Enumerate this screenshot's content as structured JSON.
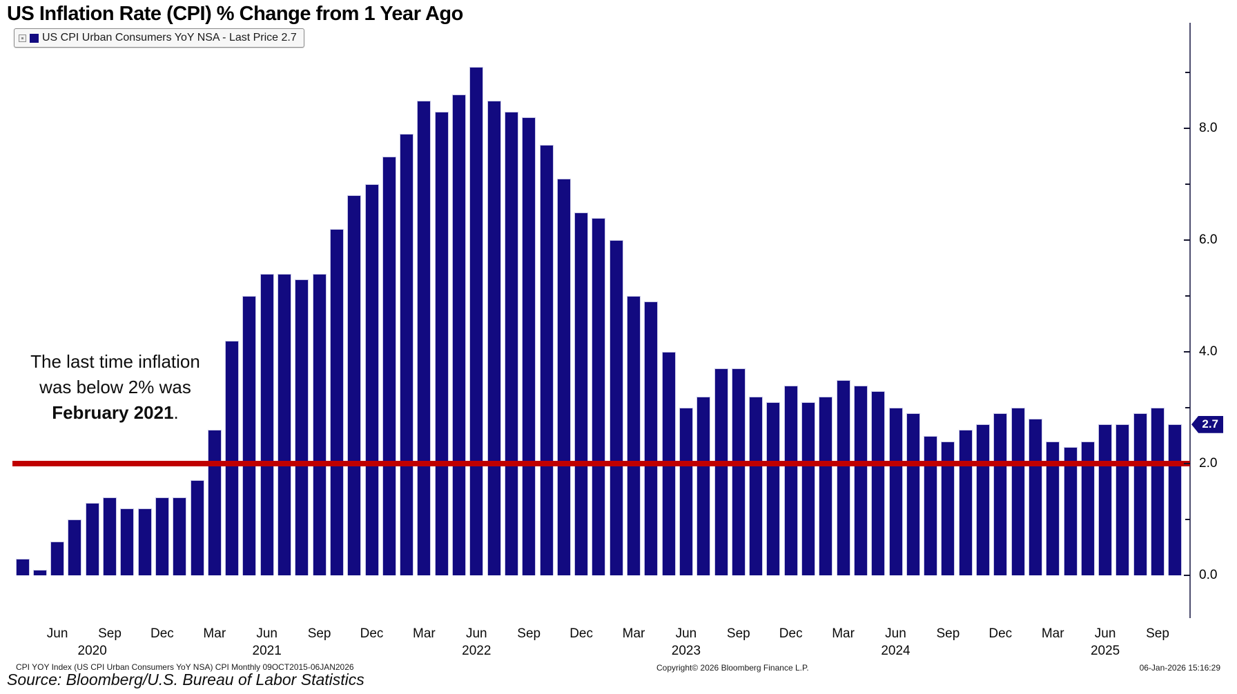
{
  "title": "US Inflation Rate (CPI) % Change from 1 Year Ago",
  "legend": {
    "label": "US CPI Urban Consumers YoY NSA - Last Price 2.7",
    "swatch_color": "#120a80"
  },
  "annotation": {
    "line1": "The last time inflation",
    "line2": "was below 2% was",
    "line3_bold": "February 2021",
    "line3_suffix": "."
  },
  "chart_data": {
    "type": "bar",
    "title": "US Inflation Rate (CPI) % Change from 1 Year Ago",
    "series_name": "US CPI Urban Consumers YoY NSA",
    "last_price": "2.7",
    "bar_color": "#120a80",
    "bar_edge_color": "#c9c9e6",
    "ref_line": {
      "value": 2.0,
      "color": "#c00000"
    },
    "ylim": [
      0,
      9.35
    ],
    "y_axis_side": "right",
    "grid": false,
    "months": [
      "Apr 2020",
      "May 2020",
      "Jun 2020",
      "Jul 2020",
      "Aug 2020",
      "Sep 2020",
      "Oct 2020",
      "Nov 2020",
      "Dec 2020",
      "Jan 2021",
      "Feb 2021",
      "Mar 2021",
      "Apr 2021",
      "May 2021",
      "Jun 2021",
      "Jul 2021",
      "Aug 2021",
      "Sep 2021",
      "Oct 2021",
      "Nov 2021",
      "Dec 2021",
      "Jan 2022",
      "Feb 2022",
      "Mar 2022",
      "Apr 2022",
      "May 2022",
      "Jun 2022",
      "Jul 2022",
      "Aug 2022",
      "Sep 2022",
      "Oct 2022",
      "Nov 2022",
      "Dec 2022",
      "Jan 2023",
      "Feb 2023",
      "Mar 2023",
      "Apr 2023",
      "May 2023",
      "Jun 2023",
      "Jul 2023",
      "Aug 2023",
      "Sep 2023",
      "Oct 2023",
      "Nov 2023",
      "Dec 2023",
      "Jan 2024",
      "Feb 2024",
      "Mar 2024",
      "Apr 2024",
      "May 2024",
      "Jun 2024",
      "Jul 2024",
      "Aug 2024",
      "Sep 2024",
      "Oct 2024",
      "Nov 2024",
      "Dec 2024",
      "Jan 2025",
      "Feb 2025",
      "Mar 2025",
      "Apr 2025",
      "May 2025",
      "Jun 2025",
      "Jul 2025",
      "Aug 2025",
      "Sep 2025",
      "Oct 2025"
    ],
    "values": [
      0.3,
      0.1,
      0.6,
      1.0,
      1.3,
      1.4,
      1.2,
      1.2,
      1.4,
      1.4,
      1.7,
      2.6,
      4.2,
      5.0,
      5.4,
      5.4,
      5.3,
      5.4,
      6.2,
      6.8,
      7.0,
      7.5,
      7.9,
      8.5,
      8.3,
      8.6,
      9.1,
      8.5,
      8.3,
      8.2,
      7.7,
      7.1,
      6.5,
      6.4,
      6.0,
      5.0,
      4.9,
      4.0,
      3.0,
      3.2,
      3.7,
      3.7,
      3.2,
      3.1,
      3.4,
      3.1,
      3.2,
      3.5,
      3.4,
      3.3,
      3.0,
      2.9,
      2.5,
      2.4,
      2.6,
      2.7,
      2.9,
      3.0,
      2.8,
      2.4,
      2.3,
      2.4,
      2.7,
      2.7,
      2.9,
      3.0,
      2.7
    ],
    "x_ticks": [
      {
        "i": 2,
        "label": "Jun"
      },
      {
        "i": 5,
        "label": "Sep"
      },
      {
        "i": 8,
        "label": "Dec"
      },
      {
        "i": 11,
        "label": "Mar"
      },
      {
        "i": 14,
        "label": "Jun"
      },
      {
        "i": 17,
        "label": "Sep"
      },
      {
        "i": 20,
        "label": "Dec"
      },
      {
        "i": 23,
        "label": "Mar"
      },
      {
        "i": 26,
        "label": "Jun"
      },
      {
        "i": 29,
        "label": "Sep"
      },
      {
        "i": 32,
        "label": "Dec"
      },
      {
        "i": 35,
        "label": "Mar"
      },
      {
        "i": 38,
        "label": "Jun"
      },
      {
        "i": 41,
        "label": "Sep"
      },
      {
        "i": 44,
        "label": "Dec"
      },
      {
        "i": 47,
        "label": "Mar"
      },
      {
        "i": 50,
        "label": "Jun"
      },
      {
        "i": 53,
        "label": "Sep"
      },
      {
        "i": 56,
        "label": "Dec"
      },
      {
        "i": 59,
        "label": "Mar"
      },
      {
        "i": 62,
        "label": "Jun"
      },
      {
        "i": 65,
        "label": "Sep"
      }
    ],
    "year_labels": [
      {
        "i": 4,
        "label": "2020"
      },
      {
        "i": 14,
        "label": "2021"
      },
      {
        "i": 26,
        "label": "2022"
      },
      {
        "i": 38,
        "label": "2023"
      },
      {
        "i": 50,
        "label": "2024"
      },
      {
        "i": 62,
        "label": "2025"
      }
    ],
    "y_ticks_major": [
      {
        "v": 0,
        "label": "0.0"
      },
      {
        "v": 2,
        "label": "2.0"
      },
      {
        "v": 4,
        "label": "4.0"
      },
      {
        "v": 6,
        "label": "6.0"
      },
      {
        "v": 8,
        "label": "8.0"
      }
    ],
    "y_ticks_minor": [
      1,
      3,
      5,
      7,
      9
    ]
  },
  "footer": {
    "left": "CPI YOY Index (US CPI Urban Consumers YoY NSA) CPI Monthly 09OCT2015-06JAN2026",
    "copyright": "Copyright© 2026 Bloomberg Finance L.P.",
    "timestamp": "06-Jan-2026 15:16:29",
    "source": "Source: Bloomberg/U.S. Bureau of Labor Statistics"
  }
}
